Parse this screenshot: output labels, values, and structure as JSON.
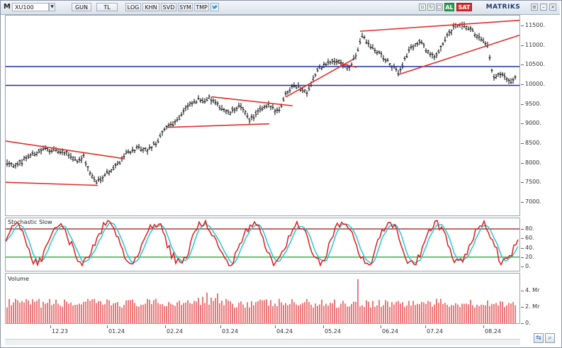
{
  "toolbar": {
    "menu_letter": "M",
    "symbol": "XU100",
    "period": "GUN",
    "currency": "TL",
    "buttons": [
      "LOG",
      "KHN",
      "SVD",
      "SYM",
      "TMP"
    ],
    "buy_label": "AL",
    "sell_label": "SAT",
    "brand": "MATRIKS"
  },
  "price_panel": {
    "colors": {
      "candle": "#000000",
      "trend": "#e0302a",
      "hline": "#1d2fa3"
    },
    "y_ticks": [
      "11500.",
      "11000.",
      "10500.",
      "10000.",
      "9500.",
      "9000.",
      "8500.",
      "8000.",
      "7500.",
      "7000."
    ],
    "y_values": [
      11500,
      11000,
      10500,
      10000,
      9500,
      9000,
      8500,
      8000,
      7500,
      7000
    ],
    "y_range": [
      6800,
      11800
    ],
    "horizontal_levels": [
      10200,
      9720
    ]
  },
  "stochastic_panel": {
    "title": "Stochastic Slow",
    "y_ticks": [
      "80.",
      "60.",
      "40.",
      "20.",
      "0."
    ],
    "y_values": [
      80,
      60,
      40,
      20,
      0
    ],
    "levels": [
      80,
      20
    ],
    "colors": {
      "k": "#e01b1b",
      "d": "#28c6d8",
      "upper": "#8b1a1a",
      "lower": "#1f9d2a"
    }
  },
  "volume_panel": {
    "title": "Volume",
    "y_ticks": [
      "4. Mr",
      "2. Mr",
      "0."
    ],
    "y_values": [
      4,
      2,
      0
    ],
    "y_range": [
      0,
      5.6
    ],
    "colors": {
      "bar": "#e02020"
    }
  },
  "x_axis": {
    "labels": [
      "12.23",
      "01.24",
      "02.24",
      "03.24",
      "04.24",
      "05.24",
      "06.24",
      "07.24",
      "08.24"
    ]
  }
}
